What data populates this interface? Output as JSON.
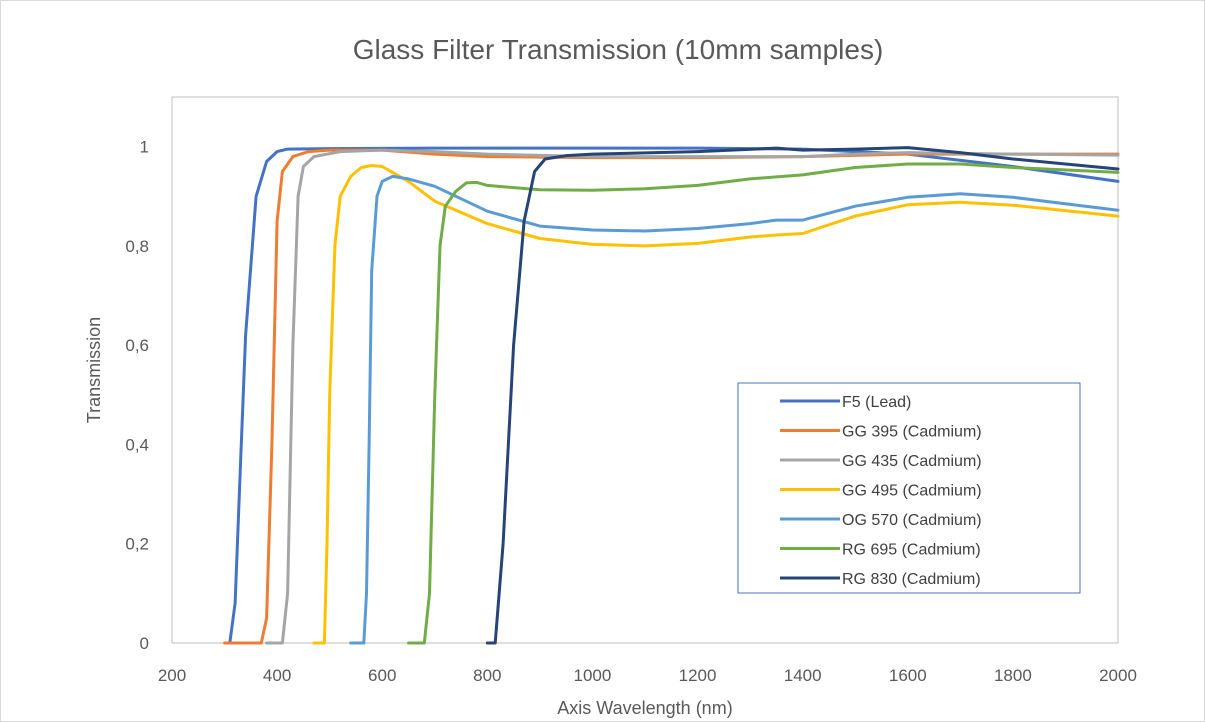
{
  "chart_data": {
    "type": "line",
    "title": "Glass Filter Transmission  (10mm samples)",
    "xlabel": "Axis Wavelength (nm)",
    "ylabel": "Transmission",
    "xlim": [
      200,
      2000
    ],
    "ylim": [
      0,
      1.1
    ],
    "xticks": [
      200,
      400,
      600,
      800,
      1000,
      1200,
      1400,
      1600,
      1800,
      2000
    ],
    "yticks": [
      0,
      0.2,
      0.4,
      0.6,
      0.8,
      1
    ],
    "ytick_labels": [
      "0",
      "0,2",
      "0,4",
      "0,6",
      "0,8",
      "1"
    ],
    "grid": false,
    "legend_position": "lower-right inside",
    "series": [
      {
        "name": "F5 (Lead)",
        "color": "#4472C4",
        "points": [
          [
            310,
            0
          ],
          [
            320,
            0.08
          ],
          [
            330,
            0.35
          ],
          [
            340,
            0.62
          ],
          [
            360,
            0.9
          ],
          [
            380,
            0.97
          ],
          [
            400,
            0.99
          ],
          [
            420,
            0.995
          ],
          [
            500,
            0.996
          ],
          [
            700,
            0.997
          ],
          [
            1000,
            0.997
          ],
          [
            1200,
            0.997
          ],
          [
            1400,
            0.995
          ],
          [
            1600,
            0.985
          ],
          [
            1800,
            0.96
          ],
          [
            2000,
            0.93
          ]
        ]
      },
      {
        "name": "GG 395 (Cadmium)",
        "color": "#ED7D31",
        "points": [
          [
            300,
            0
          ],
          [
            370,
            0
          ],
          [
            380,
            0.05
          ],
          [
            390,
            0.4
          ],
          [
            400,
            0.85
          ],
          [
            410,
            0.95
          ],
          [
            430,
            0.98
          ],
          [
            460,
            0.99
          ],
          [
            500,
            0.993
          ],
          [
            600,
            0.993
          ],
          [
            700,
            0.985
          ],
          [
            800,
            0.98
          ],
          [
            1000,
            0.978
          ],
          [
            1200,
            0.978
          ],
          [
            1400,
            0.98
          ],
          [
            1600,
            0.985
          ],
          [
            1800,
            0.985
          ],
          [
            2000,
            0.985
          ]
        ]
      },
      {
        "name": "GG 435 (Cadmium)",
        "color": "#A5A5A5",
        "points": [
          [
            380,
            0
          ],
          [
            410,
            0
          ],
          [
            420,
            0.1
          ],
          [
            430,
            0.6
          ],
          [
            440,
            0.9
          ],
          [
            450,
            0.96
          ],
          [
            470,
            0.98
          ],
          [
            520,
            0.99
          ],
          [
            600,
            0.993
          ],
          [
            700,
            0.99
          ],
          [
            800,
            0.985
          ],
          [
            1000,
            0.98
          ],
          [
            1200,
            0.98
          ],
          [
            1400,
            0.98
          ],
          [
            1500,
            0.985
          ],
          [
            1600,
            0.988
          ],
          [
            1800,
            0.985
          ],
          [
            2000,
            0.983
          ]
        ]
      },
      {
        "name": "GG 495 (Cadmium)",
        "color": "#FFC000",
        "points": [
          [
            470,
            0
          ],
          [
            490,
            0
          ],
          [
            495,
            0.2
          ],
          [
            500,
            0.5
          ],
          [
            510,
            0.8
          ],
          [
            520,
            0.9
          ],
          [
            540,
            0.94
          ],
          [
            560,
            0.958
          ],
          [
            580,
            0.962
          ],
          [
            600,
            0.96
          ],
          [
            650,
            0.93
          ],
          [
            700,
            0.89
          ],
          [
            800,
            0.845
          ],
          [
            900,
            0.815
          ],
          [
            1000,
            0.803
          ],
          [
            1100,
            0.8
          ],
          [
            1200,
            0.805
          ],
          [
            1300,
            0.818
          ],
          [
            1350,
            0.822
          ],
          [
            1400,
            0.825
          ],
          [
            1500,
            0.86
          ],
          [
            1600,
            0.883
          ],
          [
            1700,
            0.888
          ],
          [
            1800,
            0.882
          ],
          [
            2000,
            0.86
          ]
        ]
      },
      {
        "name": "OG 570 (Cadmium)",
        "color": "#5B9BD5",
        "points": [
          [
            540,
            0
          ],
          [
            565,
            0
          ],
          [
            570,
            0.1
          ],
          [
            575,
            0.4
          ],
          [
            580,
            0.75
          ],
          [
            590,
            0.9
          ],
          [
            600,
            0.93
          ],
          [
            620,
            0.94
          ],
          [
            650,
            0.935
          ],
          [
            700,
            0.92
          ],
          [
            800,
            0.87
          ],
          [
            900,
            0.84
          ],
          [
            1000,
            0.832
          ],
          [
            1100,
            0.83
          ],
          [
            1200,
            0.835
          ],
          [
            1300,
            0.845
          ],
          [
            1350,
            0.852
          ],
          [
            1400,
            0.852
          ],
          [
            1500,
            0.88
          ],
          [
            1600,
            0.898
          ],
          [
            1700,
            0.905
          ],
          [
            1800,
            0.898
          ],
          [
            2000,
            0.872
          ]
        ]
      },
      {
        "name": "RG 695 (Cadmium)",
        "color": "#70AD47",
        "points": [
          [
            650,
            0
          ],
          [
            680,
            0
          ],
          [
            690,
            0.1
          ],
          [
            700,
            0.5
          ],
          [
            710,
            0.8
          ],
          [
            720,
            0.88
          ],
          [
            740,
            0.91
          ],
          [
            760,
            0.927
          ],
          [
            780,
            0.928
          ],
          [
            800,
            0.922
          ],
          [
            900,
            0.913
          ],
          [
            1000,
            0.912
          ],
          [
            1100,
            0.915
          ],
          [
            1200,
            0.922
          ],
          [
            1300,
            0.935
          ],
          [
            1400,
            0.943
          ],
          [
            1500,
            0.958
          ],
          [
            1600,
            0.965
          ],
          [
            1700,
            0.965
          ],
          [
            1800,
            0.958
          ],
          [
            2000,
            0.948
          ]
        ]
      },
      {
        "name": "RG 830 (Cadmium)",
        "color": "#264478",
        "points": [
          [
            800,
            0
          ],
          [
            815,
            0
          ],
          [
            830,
            0.2
          ],
          [
            850,
            0.6
          ],
          [
            870,
            0.85
          ],
          [
            890,
            0.95
          ],
          [
            910,
            0.975
          ],
          [
            950,
            0.982
          ],
          [
            1000,
            0.985
          ],
          [
            1200,
            0.99
          ],
          [
            1350,
            0.997
          ],
          [
            1400,
            0.993
          ],
          [
            1500,
            0.995
          ],
          [
            1600,
            0.998
          ],
          [
            1700,
            0.988
          ],
          [
            1800,
            0.975
          ],
          [
            1900,
            0.965
          ],
          [
            2000,
            0.955
          ]
        ]
      }
    ]
  }
}
